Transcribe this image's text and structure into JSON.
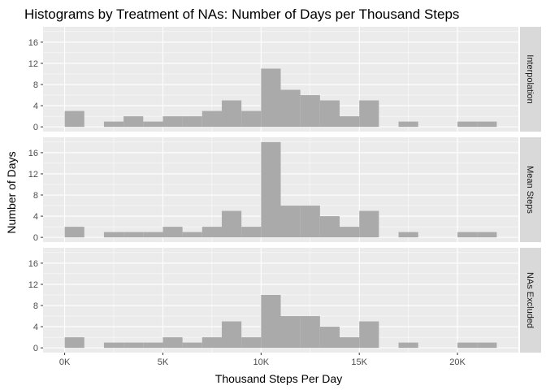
{
  "chart_data": {
    "type": "bar",
    "title": "Histograms by Treatment of NAs: Number of Days per Thousand Steps",
    "xlabel": "Thousand Steps Per Day",
    "ylabel": "Number of Days",
    "bin_width": 1000,
    "xlim": [
      -1100,
      23100
    ],
    "ylim": [
      -0.9,
      18.9
    ],
    "x_ticks": [
      0,
      5000,
      10000,
      15000,
      20000
    ],
    "x_tick_labels": [
      "0K",
      "5K",
      "10K",
      "15K",
      "20K"
    ],
    "y_ticks": [
      0,
      4,
      8,
      12,
      16
    ],
    "y_tick_labels": [
      "0",
      "4",
      "8",
      "12",
      "16"
    ],
    "bin_starts": [
      0,
      1000,
      2000,
      3000,
      4000,
      5000,
      6000,
      7000,
      8000,
      9000,
      10000,
      11000,
      12000,
      13000,
      14000,
      15000,
      16000,
      17000,
      18000,
      19000,
      20000,
      21000
    ],
    "bar_color": "#aaaaaa",
    "panel_background": "#ebebeb",
    "strip_background": "#d9d9d9",
    "series": [
      {
        "name": "Interpolation",
        "values": [
          3,
          0,
          1,
          2,
          1,
          2,
          2,
          3,
          5,
          3,
          11,
          7,
          6,
          5,
          2,
          5,
          0,
          1,
          0,
          0,
          1,
          1
        ]
      },
      {
        "name": "Mean Steps",
        "values": [
          2,
          0,
          1,
          1,
          1,
          2,
          1,
          2,
          5,
          2,
          18,
          6,
          6,
          4,
          2,
          5,
          0,
          1,
          0,
          0,
          1,
          1
        ]
      },
      {
        "name": "NAs Excluded",
        "values": [
          2,
          0,
          1,
          1,
          1,
          2,
          1,
          2,
          5,
          2,
          10,
          6,
          6,
          4,
          2,
          5,
          0,
          1,
          0,
          0,
          1,
          1
        ]
      }
    ]
  }
}
